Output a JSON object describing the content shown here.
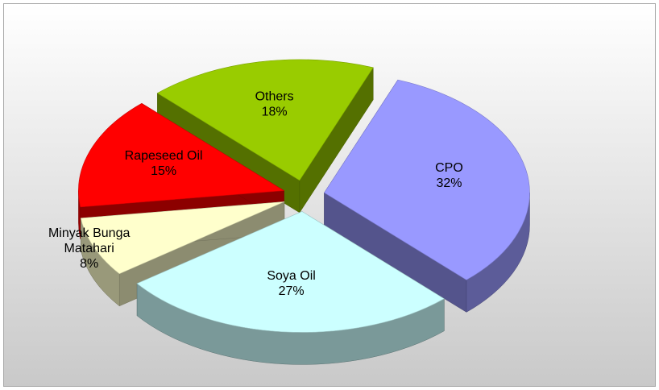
{
  "chart_data": {
    "type": "pie",
    "title": "",
    "slices": [
      {
        "label_lines": [
          "CPO"
        ],
        "value_label": "32%",
        "value": 32,
        "color": "#9999ff"
      },
      {
        "label_lines": [
          "Soya Oil"
        ],
        "value_label": "27%",
        "value": 27,
        "color": "#ccffff"
      },
      {
        "label_lines": [
          "Minyak Bunga",
          "Matahari"
        ],
        "value_label": "8%",
        "value": 8,
        "color": "#ffffcc"
      },
      {
        "label_lines": [
          "Rapeseed Oil"
        ],
        "value_label": "15%",
        "value": 15,
        "color": "#ff0000"
      },
      {
        "label_lines": [
          "Others"
        ],
        "value_label": "18%",
        "value": 18,
        "color": "#99cc00"
      }
    ],
    "exploded": true,
    "style": "3d",
    "legend": "none"
  }
}
